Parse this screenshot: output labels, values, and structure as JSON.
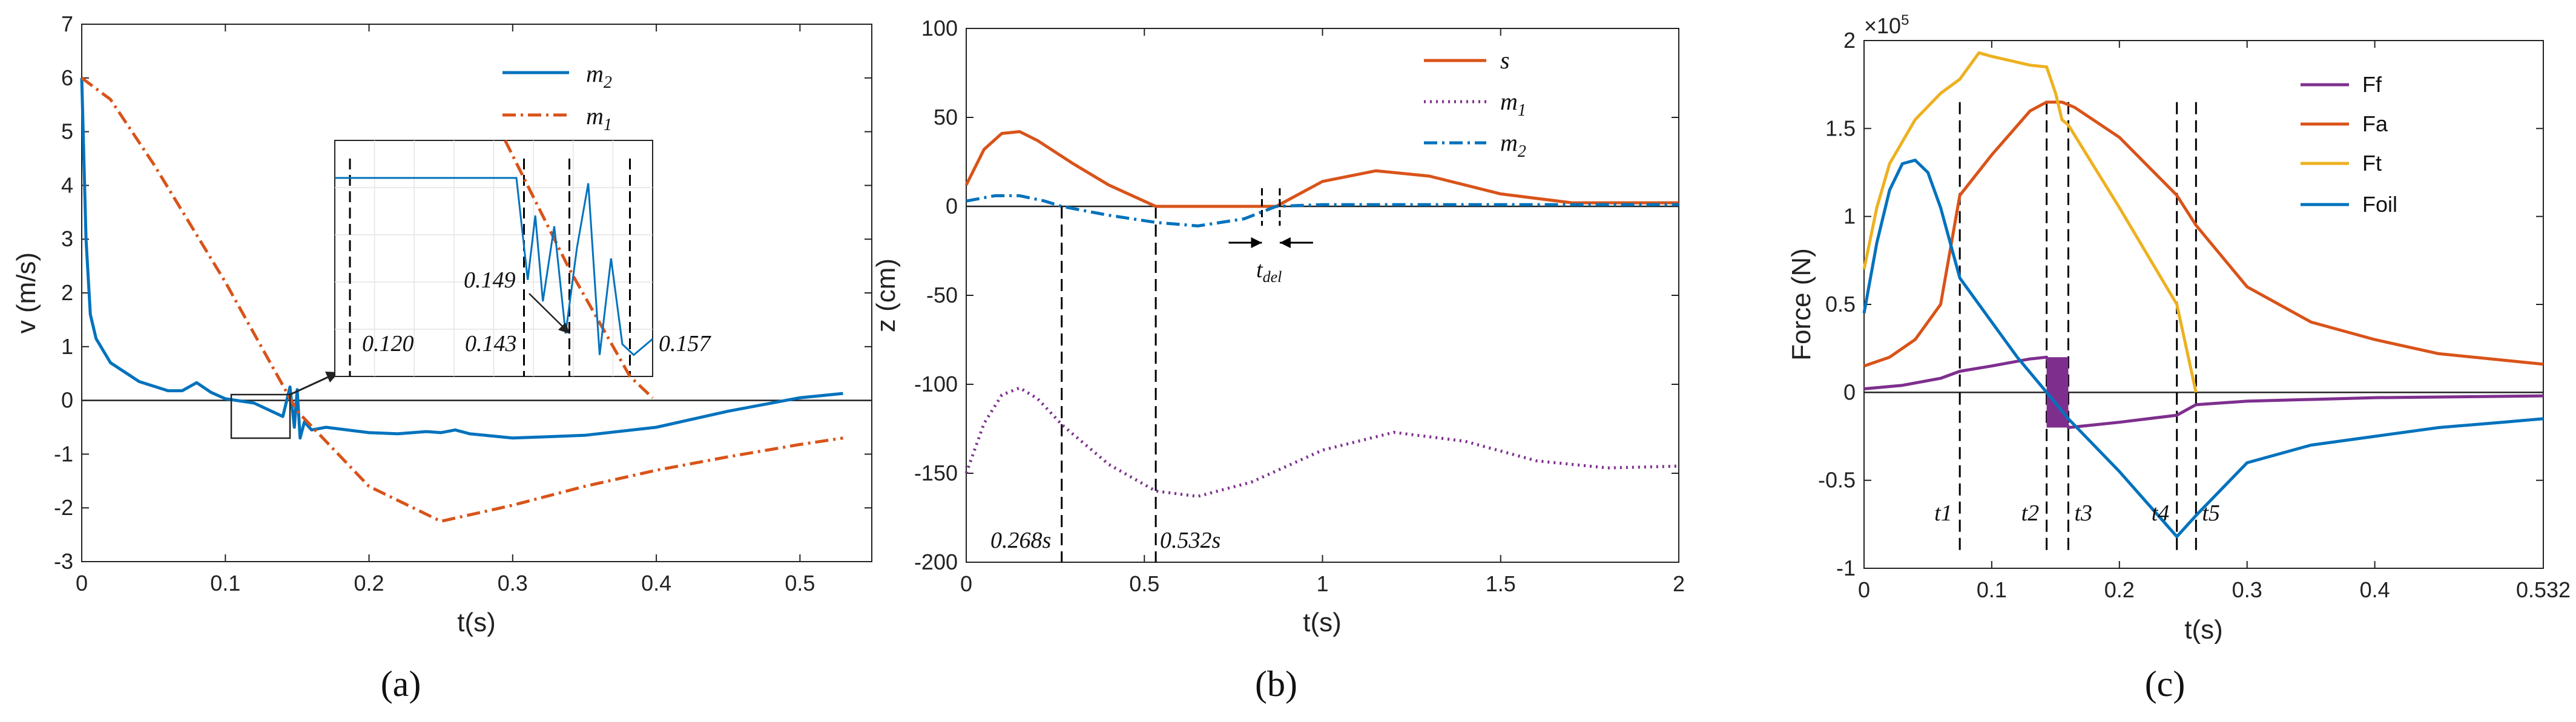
{
  "colors": {
    "blue": "#0072BD",
    "orange": "#D95319",
    "purple": "#7E2F8E",
    "yellow": "#EDB120",
    "axis": "#222222",
    "dash": "#000000"
  },
  "chart_data": [
    {
      "type": "line",
      "panel_label": "(a)",
      "xlabel": "t(s)",
      "ylabel": "v (m/s)",
      "xlim": [
        0,
        0.55
      ],
      "ylim": [
        -3,
        7
      ],
      "xticks": [
        0,
        0.1,
        0.2,
        0.3,
        0.4,
        0.5
      ],
      "yticks": [
        -3,
        -2,
        -1,
        0,
        1,
        2,
        3,
        4,
        5,
        6,
        7
      ],
      "xticklabels": [
        "0",
        "0.1",
        "0.2",
        "0.3",
        "0.4",
        "0.5"
      ],
      "yticklabels": [
        "-3",
        "-2",
        "-1",
        "0",
        "1",
        "2",
        "3",
        "4",
        "5",
        "6",
        "7"
      ],
      "legend": [
        {
          "name": "m2",
          "base": "m",
          "sub": "2"
        },
        {
          "name": "m1",
          "base": "m",
          "sub": "1"
        }
      ],
      "series": [
        {
          "name": "m2",
          "color": "blue",
          "style": "solid",
          "x": [
            0,
            0.003,
            0.006,
            0.01,
            0.02,
            0.04,
            0.06,
            0.07,
            0.08,
            0.09,
            0.1,
            0.12,
            0.14,
            0.145,
            0.148,
            0.15,
            0.152,
            0.155,
            0.16,
            0.17,
            0.2,
            0.22,
            0.24,
            0.25,
            0.26,
            0.27,
            0.3,
            0.35,
            0.4,
            0.45,
            0.5,
            0.53
          ],
          "y": [
            6.0,
            3.0,
            1.6,
            1.15,
            0.7,
            0.35,
            0.18,
            0.18,
            0.33,
            0.15,
            0.03,
            -0.05,
            -0.3,
            0.25,
            -0.5,
            0.2,
            -0.7,
            -0.4,
            -0.55,
            -0.5,
            -0.6,
            -0.62,
            -0.58,
            -0.6,
            -0.55,
            -0.62,
            -0.7,
            -0.65,
            -0.5,
            -0.2,
            0.05,
            0.13
          ]
        },
        {
          "name": "m1",
          "color": "orange",
          "style": "dashdot",
          "x": [
            0,
            0.02,
            0.05,
            0.1,
            0.15,
            0.2,
            0.25,
            0.3,
            0.35,
            0.4,
            0.45,
            0.5,
            0.53
          ],
          "y": [
            6.0,
            5.6,
            4.4,
            2.2,
            -0.2,
            -1.6,
            -2.25,
            -1.95,
            -1.6,
            -1.3,
            -1.05,
            -0.82,
            -0.7
          ]
        }
      ],
      "inset": {
        "xlim": [
          0.118,
          0.16
        ],
        "ylim": [
          -0.9,
          1.3
        ],
        "vlines": [
          0.12,
          0.143,
          0.149,
          0.157
        ],
        "annotations": [
          "0.120",
          "0.143",
          "0.149",
          "0.157"
        ],
        "m2_x": [
          0.118,
          0.142,
          0.1435,
          0.1445,
          0.1455,
          0.147,
          0.1485,
          0.15,
          0.1515,
          0.153,
          0.1545,
          0.156,
          0.1575,
          0.16
        ],
        "m2_y": [
          0.95,
          0.95,
          0.0,
          0.6,
          -0.2,
          0.5,
          -0.5,
          0.3,
          0.9,
          -0.7,
          0.2,
          -0.6,
          -0.7,
          -0.55
        ],
        "m1_x": [
          0.1405,
          0.149,
          0.157,
          0.16
        ],
        "m1_y": [
          1.3,
          0.1,
          -0.9,
          -1.1
        ]
      }
    },
    {
      "type": "line",
      "panel_label": "(b)",
      "xlabel": "t(s)",
      "ylabel": "z (cm)",
      "xlim": [
        0,
        2
      ],
      "ylim": [
        -200,
        100
      ],
      "xticks": [
        0,
        0.5,
        1,
        1.5,
        2
      ],
      "yticks": [
        -200,
        -150,
        -100,
        -50,
        0,
        50,
        100
      ],
      "xticklabels": [
        "0",
        "0.5",
        "1",
        "1.5",
        "2"
      ],
      "yticklabels": [
        "-200",
        "-150",
        "-100",
        "-50",
        "0",
        "50",
        "100"
      ],
      "legend": [
        {
          "name": "s",
          "base": "s",
          "sub": ""
        },
        {
          "name": "m1",
          "base": "m",
          "sub": "1"
        },
        {
          "name": "m2",
          "base": "m",
          "sub": "2"
        }
      ],
      "series": [
        {
          "name": "s",
          "color": "orange",
          "style": "solid",
          "x": [
            0,
            0.05,
            0.1,
            0.15,
            0.2,
            0.3,
            0.4,
            0.532,
            0.7,
            0.87,
            1.0,
            1.15,
            1.3,
            1.5,
            1.7,
            1.9,
            2.0
          ],
          "y": [
            12,
            32,
            41,
            42,
            37,
            24,
            12,
            0,
            0,
            0,
            14,
            20,
            17,
            7,
            2,
            2,
            2
          ]
        },
        {
          "name": "m1",
          "color": "purple",
          "style": "dotted",
          "x": [
            0,
            0.05,
            0.1,
            0.15,
            0.2,
            0.27,
            0.4,
            0.532,
            0.65,
            0.8,
            1.0,
            1.2,
            1.4,
            1.6,
            1.8,
            2.0
          ],
          "y": [
            -150,
            -122,
            -106,
            -102,
            -108,
            -123,
            -145,
            -160,
            -163,
            -155,
            -137,
            -127,
            -132,
            -143,
            -147,
            -146
          ]
        },
        {
          "name": "m2",
          "color": "blue",
          "style": "dashdot",
          "x": [
            0,
            0.08,
            0.15,
            0.22,
            0.268,
            0.4,
            0.532,
            0.65,
            0.78,
            0.87,
            1.0,
            1.3,
            1.6,
            2.0
          ],
          "y": [
            3,
            6,
            6,
            3,
            0,
            -5,
            -9,
            -11,
            -7,
            0,
            1,
            1,
            1,
            1
          ]
        }
      ],
      "vlines": [
        0.268,
        0.532
      ],
      "vline_labels": [
        "0.268s",
        "0.532s"
      ],
      "tdel": {
        "x1": 0.83,
        "x2": 0.88,
        "label_base": "t",
        "label_sub": "del"
      }
    },
    {
      "type": "line",
      "panel_label": "(c)",
      "xlabel": "t(s)",
      "ylabel": "Force (N)",
      "y_multiplier": "×10",
      "y_multiplier_exp": "5",
      "xlim": [
        0,
        0.532
      ],
      "ylim": [
        -1,
        2
      ],
      "xticks": [
        0,
        0.1,
        0.2,
        0.3,
        0.4,
        0.532
      ],
      "yticks": [
        -1,
        -0.5,
        0,
        0.5,
        1,
        1.5,
        2
      ],
      "xticklabels": [
        "0",
        "0.1",
        "0.2",
        "0.3",
        "0.4",
        "0.532"
      ],
      "yticklabels": [
        "-1",
        "-0.5",
        "0",
        "0.5",
        "1",
        "1.5",
        "2"
      ],
      "legend": [
        {
          "name": "Ff"
        },
        {
          "name": "Fa"
        },
        {
          "name": "Ft"
        },
        {
          "name": "Foil"
        }
      ],
      "series": [
        {
          "name": "Ff",
          "color": "purple",
          "style": "solid",
          "x": [
            0,
            0.03,
            0.06,
            0.075,
            0.1,
            0.13,
            0.143,
            0.16,
            0.2,
            0.245,
            0.26,
            0.3,
            0.4,
            0.532
          ],
          "y": [
            0.02,
            0.04,
            0.08,
            0.12,
            0.15,
            0.19,
            0.2,
            -0.2,
            -0.17,
            -0.13,
            -0.07,
            -0.05,
            -0.03,
            -0.02
          ]
        },
        {
          "name": "Fa",
          "color": "orange",
          "style": "solid",
          "x": [
            0,
            0.02,
            0.04,
            0.06,
            0.075,
            0.1,
            0.13,
            0.143,
            0.155,
            0.165,
            0.2,
            0.245,
            0.26,
            0.3,
            0.35,
            0.4,
            0.45,
            0.532
          ],
          "y": [
            0.15,
            0.2,
            0.3,
            0.5,
            1.12,
            1.35,
            1.6,
            1.65,
            1.65,
            1.62,
            1.45,
            1.12,
            0.95,
            0.6,
            0.4,
            0.3,
            0.22,
            0.16
          ]
        },
        {
          "name": "Ft",
          "color": "yellow",
          "style": "solid",
          "x": [
            0,
            0.01,
            0.02,
            0.04,
            0.06,
            0.075,
            0.09,
            0.1,
            0.13,
            0.143,
            0.15,
            0.155,
            0.16,
            0.2,
            0.245,
            0.26
          ],
          "y": [
            0.7,
            1.05,
            1.3,
            1.55,
            1.7,
            1.78,
            1.93,
            1.91,
            1.86,
            1.85,
            1.7,
            1.55,
            1.52,
            1.05,
            0.5,
            0.0
          ]
        },
        {
          "name": "Foil",
          "color": "blue",
          "style": "solid",
          "x": [
            0,
            0.01,
            0.02,
            0.03,
            0.04,
            0.05,
            0.06,
            0.075,
            0.1,
            0.12,
            0.143,
            0.16,
            0.2,
            0.245,
            0.26,
            0.3,
            0.35,
            0.4,
            0.45,
            0.5,
            0.532
          ],
          "y": [
            0.45,
            0.85,
            1.15,
            1.3,
            1.32,
            1.25,
            1.05,
            0.65,
            0.4,
            0.2,
            0.0,
            -0.15,
            -0.45,
            -0.82,
            -0.7,
            -0.4,
            -0.3,
            -0.25,
            -0.2,
            -0.17,
            -0.15
          ]
        }
      ],
      "vlines": [
        0.075,
        0.143,
        0.16,
        0.245,
        0.26
      ],
      "vline_labels": [
        "t1",
        "t2",
        "t3",
        "t4",
        "t5"
      ],
      "band": {
        "x1": 0.143,
        "x2": 0.16,
        "y1": -0.2,
        "y2": 0.2
      }
    }
  ]
}
